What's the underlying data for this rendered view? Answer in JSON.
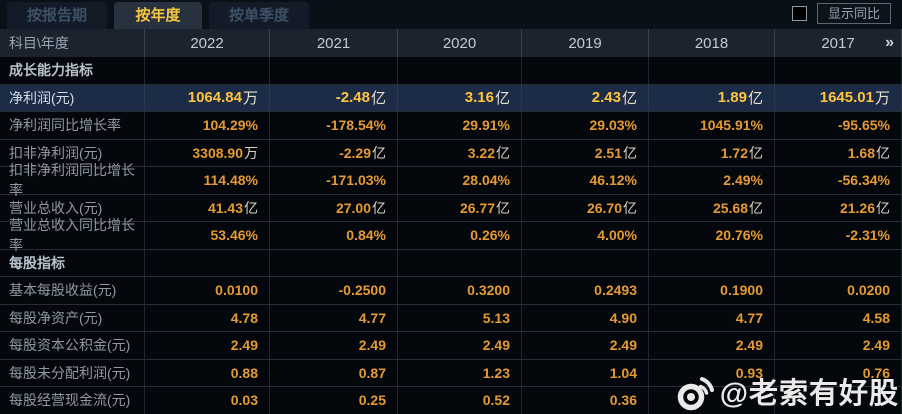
{
  "tabs": [
    {
      "label": "按报告期",
      "active": false
    },
    {
      "label": "按年度",
      "active": true
    },
    {
      "label": "按单季度",
      "active": false
    }
  ],
  "controls": {
    "show_yoy_label": "显示同比"
  },
  "icons": {
    "more_years": "»"
  },
  "table": {
    "corner_label": "科目\\年度",
    "years": [
      "2022",
      "2021",
      "2020",
      "2019",
      "2018",
      "2017"
    ],
    "rows": [
      {
        "type": "section",
        "label": "成长能力指标",
        "values": [
          "",
          "",
          "",
          "",
          "",
          ""
        ]
      },
      {
        "type": "data",
        "highlight": true,
        "label": "净利润(元)",
        "values": [
          [
            "1064.84",
            "万"
          ],
          [
            "-2.48",
            "亿"
          ],
          [
            "3.16",
            "亿"
          ],
          [
            "2.43",
            "亿"
          ],
          [
            "1.89",
            "亿"
          ],
          [
            "1645.01",
            "万"
          ]
        ]
      },
      {
        "type": "data",
        "label": "净利润同比增长率",
        "values": [
          "104.29%",
          "-178.54%",
          "29.91%",
          "29.03%",
          "1045.91%",
          "-95.65%"
        ]
      },
      {
        "type": "data",
        "label": "扣非净利润(元)",
        "values": [
          [
            "3308.90",
            "万"
          ],
          [
            "-2.29",
            "亿"
          ],
          [
            "3.22",
            "亿"
          ],
          [
            "2.51",
            "亿"
          ],
          [
            "1.72",
            "亿"
          ],
          [
            "1.68",
            "亿"
          ]
        ]
      },
      {
        "type": "data",
        "label": "扣非净利润同比增长率",
        "values": [
          "114.48%",
          "-171.03%",
          "28.04%",
          "46.12%",
          "2.49%",
          "-56.34%"
        ]
      },
      {
        "type": "data",
        "label": "营业总收入(元)",
        "values": [
          [
            "41.43",
            "亿"
          ],
          [
            "27.00",
            "亿"
          ],
          [
            "26.77",
            "亿"
          ],
          [
            "26.70",
            "亿"
          ],
          [
            "25.68",
            "亿"
          ],
          [
            "21.26",
            "亿"
          ]
        ]
      },
      {
        "type": "data",
        "label": "营业总收入同比增长率",
        "values": [
          "53.46%",
          "0.84%",
          "0.26%",
          "4.00%",
          "20.76%",
          "-2.31%"
        ]
      },
      {
        "type": "section",
        "label": "每股指标",
        "values": [
          "",
          "",
          "",
          "",
          "",
          ""
        ]
      },
      {
        "type": "data",
        "label": "基本每股收益(元)",
        "values": [
          "0.0100",
          "-0.2500",
          "0.3200",
          "0.2493",
          "0.1900",
          "0.0200"
        ]
      },
      {
        "type": "data",
        "label": "每股净资产(元)",
        "values": [
          "4.78",
          "4.77",
          "5.13",
          "4.90",
          "4.77",
          "4.58"
        ]
      },
      {
        "type": "data",
        "label": "每股资本公积金(元)",
        "values": [
          "2.49",
          "2.49",
          "2.49",
          "2.49",
          "2.49",
          "2.49"
        ]
      },
      {
        "type": "data",
        "label": "每股未分配利润(元)",
        "values": [
          "0.88",
          "0.87",
          "1.23",
          "1.04",
          "0.93",
          "0.76"
        ]
      },
      {
        "type": "data",
        "label": "每股经营现金流(元)",
        "values": [
          "0.03",
          "0.25",
          "0.52",
          "0.36",
          "",
          ""
        ]
      }
    ]
  },
  "watermark": {
    "handle": "@老索有好股"
  }
}
